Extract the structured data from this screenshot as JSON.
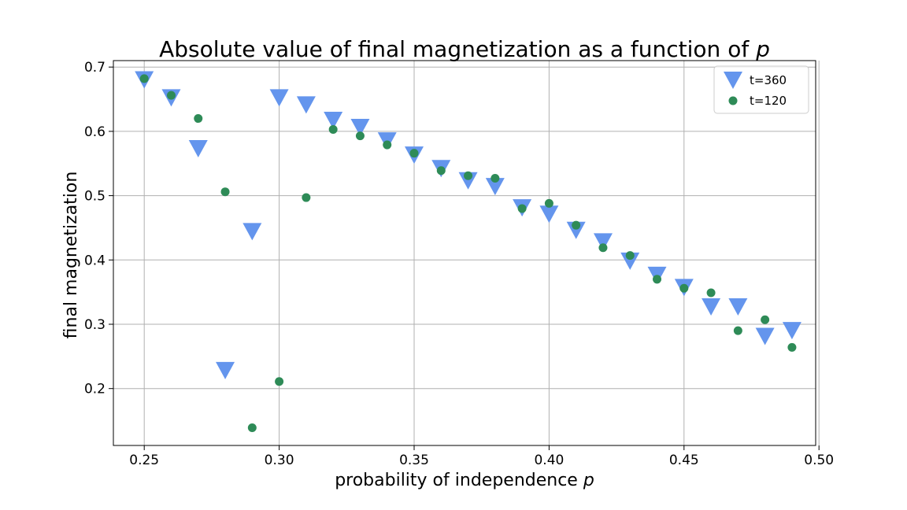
{
  "chart_data": {
    "type": "scatter",
    "title_main": "Absolute value of final magnetization as a function of ",
    "title_var": "p",
    "xlabel_main": "probability of independence ",
    "xlabel_var": "p",
    "ylabel": "final magnetization",
    "xlim": [
      0.24,
      0.5
    ],
    "ylim": [
      0.11,
      0.71
    ],
    "xticks": [
      0.25,
      0.3,
      0.35,
      0.4,
      0.45,
      0.5
    ],
    "xtick_labels": [
      "0.25",
      "0.30",
      "0.35",
      "0.40",
      "0.45",
      "0.50"
    ],
    "yticks": [
      0.2,
      0.3,
      0.4,
      0.5,
      0.6,
      0.7
    ],
    "ytick_labels": [
      "0.2",
      "0.3",
      "0.4",
      "0.5",
      "0.6",
      "0.7"
    ],
    "grid": true,
    "legend_position": "top-right",
    "series": [
      {
        "name": "t=360",
        "marker": "triangle-down",
        "color": "#6495ED",
        "x": [
          0.25,
          0.26,
          0.27,
          0.28,
          0.29,
          0.3,
          0.31,
          0.32,
          0.33,
          0.34,
          0.35,
          0.36,
          0.37,
          0.38,
          0.39,
          0.4,
          0.41,
          0.42,
          0.43,
          0.44,
          0.45,
          0.46,
          0.47,
          0.48,
          0.49
        ],
        "y": [
          0.68,
          0.652,
          0.573,
          0.228,
          0.444,
          0.652,
          0.641,
          0.617,
          0.606,
          0.585,
          0.563,
          0.542,
          0.523,
          0.514,
          0.481,
          0.471,
          0.446,
          0.428,
          0.398,
          0.376,
          0.357,
          0.327,
          0.327,
          0.281,
          0.29
        ]
      },
      {
        "name": "t=120",
        "marker": "circle",
        "color": "#2E8B57",
        "x": [
          0.25,
          0.26,
          0.27,
          0.28,
          0.29,
          0.3,
          0.31,
          0.32,
          0.33,
          0.34,
          0.35,
          0.36,
          0.37,
          0.38,
          0.39,
          0.4,
          0.41,
          0.42,
          0.43,
          0.44,
          0.45,
          0.46,
          0.47,
          0.48,
          0.49
        ],
        "y": [
          0.682,
          0.656,
          0.62,
          0.506,
          0.139,
          0.211,
          0.497,
          0.603,
          0.593,
          0.579,
          0.566,
          0.539,
          0.531,
          0.527,
          0.48,
          0.488,
          0.454,
          0.419,
          0.407,
          0.37,
          0.356,
          0.349,
          0.29,
          0.307,
          0.264
        ]
      }
    ]
  }
}
